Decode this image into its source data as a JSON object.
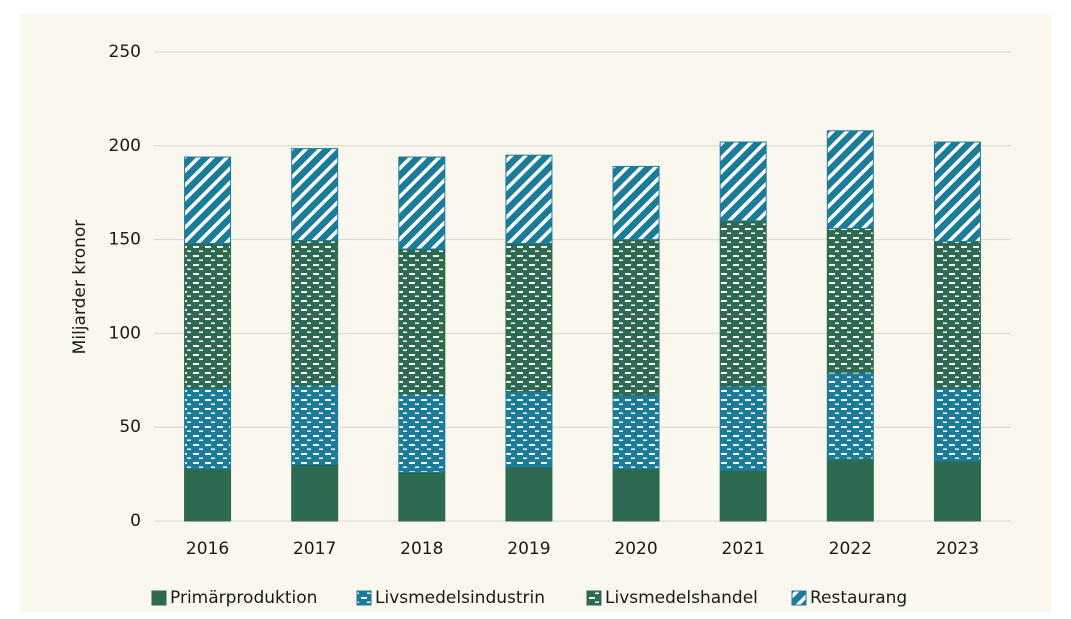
{
  "chart_data": {
    "type": "stacked_bar",
    "y_label": "Miljarder kronor",
    "categories": [
      "2016",
      "2017",
      "2018",
      "2019",
      "2020",
      "2021",
      "2022",
      "2023"
    ],
    "series": [
      {
        "name": "Primärproduktion",
        "color": "#2d6a4f",
        "pattern": "solid",
        "values": [
          28,
          30,
          26,
          29,
          28,
          27,
          33,
          32
        ]
      },
      {
        "name": "Livsmedelsindustrin",
        "color": "#1b7b9b",
        "pattern": "dashes",
        "values": [
          43,
          42.5,
          42,
          40,
          39,
          45,
          46,
          39
        ]
      },
      {
        "name": "Livsmedelshandel",
        "color": "#2d6a4f",
        "pattern": "dashes",
        "values": [
          77,
          77,
          77,
          79,
          83,
          88,
          77,
          78
        ]
      },
      {
        "name": "Restaurang",
        "color": "#1b7b9b",
        "pattern": "diagonal",
        "values": [
          46,
          49,
          49,
          47,
          39,
          42,
          52,
          53
        ]
      }
    ],
    "ylim": [
      0,
      250
    ],
    "yticks": [
      0,
      50,
      100,
      150,
      200,
      250
    ],
    "grid": true,
    "legend": "bottom"
  }
}
